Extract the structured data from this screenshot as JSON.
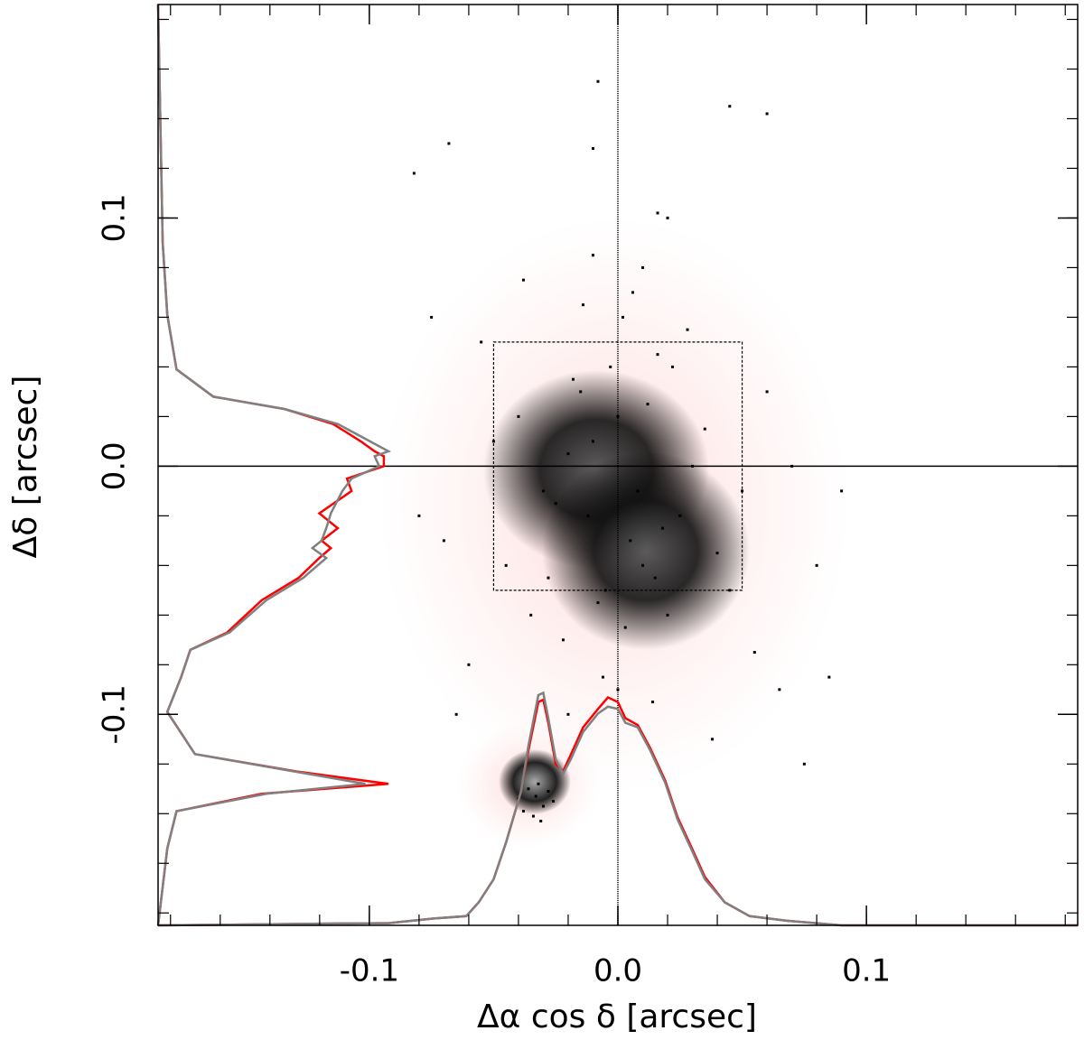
{
  "chart_data": {
    "type": "scatter",
    "xlabel": "Δα cos δ [arcsec]",
    "ylabel": "Δδ [arcsec]",
    "xlim": [
      -0.185,
      0.185
    ],
    "ylim": [
      -0.185,
      0.186
    ],
    "xticks": [
      -0.1,
      {
        "value": 0,
        "label": "0.0"
      },
      0.1
    ],
    "yticks": [
      -0.1,
      {
        "value": 0,
        "label": "0.0"
      },
      0.1
    ],
    "xminorticks": [
      -0.18,
      -0.16,
      -0.14,
      -0.12,
      -0.1,
      -0.08,
      -0.06,
      -0.04,
      -0.02,
      0,
      0.02,
      0.04,
      0.06,
      0.08,
      0.1,
      0.12,
      0.14,
      0.16,
      0.18
    ],
    "yminorticks": [
      -0.18,
      -0.16,
      -0.14,
      -0.12,
      -0.1,
      -0.08,
      -0.06,
      -0.04,
      -0.02,
      0,
      0.02,
      0.04,
      0.06,
      0.08,
      0.1,
      0.12,
      0.14,
      0.16,
      0.18
    ],
    "box": {
      "x": [
        -0.05,
        0.05
      ],
      "y": [
        -0.05,
        0.05
      ]
    },
    "series": [
      {
        "color": "#000000",
        "x": [
          -0.01,
          0.005,
          -0.02,
          0.015,
          -0.03,
          0.025,
          0.0,
          -0.005,
          0.01,
          -0.015,
          0.02,
          -0.025,
          0.03,
          -0.04,
          0.04,
          -0.045,
          0.035,
          -0.012,
          0.008,
          0.018,
          -0.018,
          0.003,
          -0.008,
          0.012,
          -0.022,
          0.022,
          -0.035,
          0.045,
          -0.05,
          0.05,
          -0.06,
          0.06,
          -0.055,
          0.055,
          -0.07,
          0.07,
          -0.065,
          0.065,
          0.002,
          -0.003,
          0.006,
          -0.006,
          0.014,
          -0.014,
          0.028,
          -0.028,
          0.038,
          -0.038,
          0.08,
          -0.08,
          0.075,
          -0.075,
          0.09,
          0.085,
          -0.01,
          0.01,
          0.0,
          0.02,
          -0.02,
          0.016,
          -0.008,
          -0.01,
          0.045,
          0.06,
          -0.082,
          -0.068,
          0.016,
          -0.033,
          -0.03,
          -0.036,
          -0.028,
          -0.038,
          -0.032,
          -0.034,
          -0.026,
          -0.04,
          -0.031
        ],
        "y": [
          0.01,
          -0.03,
          0.005,
          -0.045,
          -0.01,
          -0.02,
          0.02,
          -0.05,
          -0.04,
          0.03,
          -0.06,
          -0.015,
          0.0,
          0.02,
          -0.035,
          -0.04,
          0.015,
          -0.02,
          -0.01,
          -0.025,
          0.035,
          -0.065,
          -0.055,
          0.025,
          -0.07,
          0.04,
          -0.06,
          -0.05,
          0.01,
          -0.01,
          -0.08,
          0.03,
          0.05,
          -0.075,
          -0.03,
          0.0,
          -0.1,
          -0.09,
          0.06,
          0.04,
          0.07,
          -0.085,
          -0.095,
          0.065,
          0.055,
          -0.045,
          -0.11,
          0.075,
          -0.04,
          -0.02,
          -0.12,
          0.06,
          -0.01,
          -0.085,
          0.085,
          0.08,
          -0.09,
          0.1,
          -0.1,
          0.045,
          0.155,
          0.128,
          0.145,
          0.142,
          0.118,
          0.13,
          0.102,
          -0.133,
          -0.137,
          -0.13,
          -0.131,
          -0.139,
          -0.128,
          -0.141,
          -0.135,
          -0.134,
          -0.143
        ]
      }
    ],
    "x_profiles": [
      {
        "color": "#ff0000",
        "x": [
          -0.185,
          -0.092,
          -0.074,
          -0.061,
          -0.056,
          -0.05,
          -0.045,
          -0.039,
          -0.036,
          -0.032,
          -0.03,
          -0.028,
          -0.025,
          -0.022,
          -0.019,
          -0.014,
          -0.008,
          -0.004,
          0,
          0.003,
          0.008,
          0.013,
          0.019,
          0.024,
          0.03,
          0.035,
          0.043,
          0.053,
          0.068,
          0.09,
          0.185
        ],
        "values": [
          0,
          0.01,
          0.03,
          0.04,
          0.1,
          0.2,
          0.36,
          0.58,
          0.76,
          0.97,
          0.98,
          0.88,
          0.7,
          0.67,
          0.74,
          0.86,
          0.94,
          0.99,
          0.97,
          0.9,
          0.87,
          0.77,
          0.63,
          0.47,
          0.33,
          0.21,
          0.1,
          0.04,
          0.02,
          0,
          0
        ]
      },
      {
        "color": "#808080",
        "x": [
          -0.185,
          -0.092,
          -0.074,
          -0.061,
          -0.056,
          -0.05,
          -0.045,
          -0.039,
          -0.036,
          -0.032,
          -0.03,
          -0.028,
          -0.025,
          -0.022,
          -0.019,
          -0.014,
          -0.008,
          -0.004,
          0,
          0.003,
          0.008,
          0.013,
          0.019,
          0.024,
          0.03,
          0.035,
          0.043,
          0.053,
          0.068,
          0.09,
          0.185
        ],
        "values": [
          0,
          0.01,
          0.03,
          0.04,
          0.1,
          0.2,
          0.36,
          0.58,
          0.78,
          1.0,
          1.01,
          0.9,
          0.72,
          0.66,
          0.72,
          0.84,
          0.92,
          0.95,
          0.94,
          0.88,
          0.86,
          0.76,
          0.62,
          0.46,
          0.32,
          0.2,
          0.1,
          0.04,
          0.02,
          0,
          0
        ]
      }
    ],
    "y_profiles": [
      {
        "color": "#ff0000",
        "y": [
          0.186,
          0.09,
          0.061,
          0.039,
          0.028,
          0.023,
          0.017,
          0.01,
          0.006,
          0.004,
          0,
          -0.005,
          -0.01,
          -0.019,
          -0.025,
          -0.03,
          -0.033,
          -0.037,
          -0.045,
          -0.054,
          -0.067,
          -0.074,
          -0.085,
          -0.099,
          -0.116,
          -0.123,
          -0.128,
          -0.132,
          -0.139,
          -0.154,
          -0.185
        ],
        "values": [
          0,
          0.02,
          0.04,
          0.08,
          0.24,
          0.55,
          0.76,
          0.88,
          0.94,
          0.98,
          0.98,
          0.82,
          0.84,
          0.7,
          0.78,
          0.71,
          0.75,
          0.7,
          0.61,
          0.45,
          0.3,
          0.14,
          0.1,
          0.04,
          0.16,
          0.6,
          1.0,
          0.45,
          0.08,
          0.04,
          0
        ]
      },
      {
        "color": "#808080",
        "y": [
          0.186,
          0.09,
          0.061,
          0.039,
          0.028,
          0.023,
          0.017,
          0.01,
          0.006,
          0.004,
          0,
          -0.005,
          -0.01,
          -0.019,
          -0.025,
          -0.03,
          -0.033,
          -0.037,
          -0.045,
          -0.054,
          -0.067,
          -0.074,
          -0.085,
          -0.099,
          -0.116,
          -0.123,
          -0.128,
          -0.132,
          -0.139,
          -0.154,
          -0.185
        ],
        "values": [
          0,
          0.02,
          0.04,
          0.08,
          0.24,
          0.55,
          0.78,
          0.92,
          1.0,
          0.94,
          0.96,
          0.84,
          0.8,
          0.75,
          0.73,
          0.71,
          0.67,
          0.73,
          0.63,
          0.47,
          0.31,
          0.14,
          0.1,
          0.04,
          0.16,
          0.59,
          0.9,
          0.47,
          0.08,
          0.04,
          0
        ]
      }
    ]
  }
}
